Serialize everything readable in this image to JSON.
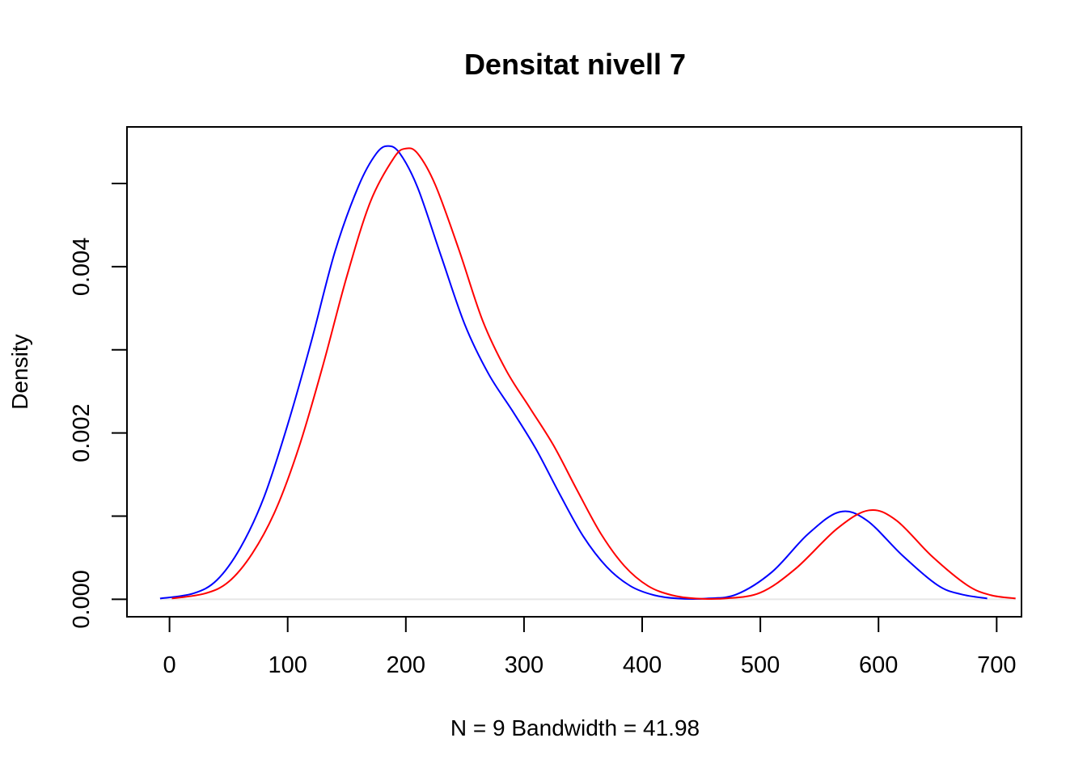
{
  "chart_data": {
    "type": "line",
    "title": "Densitat nivell 7",
    "xlabel": "N = 9   Bandwidth = 41.98",
    "ylabel": "Density",
    "xlim": [
      -36,
      721
    ],
    "ylim": [
      -0.00021,
      0.00568
    ],
    "x_ticks": [
      0,
      100,
      200,
      300,
      400,
      500,
      600,
      700
    ],
    "x_tick_labels": [
      "0",
      "100",
      "200",
      "300",
      "400",
      "500",
      "600",
      "700"
    ],
    "y_ticks": [
      0,
      0.001,
      0.002,
      0.003,
      0.004,
      0.005
    ],
    "y_tick_labels": [
      "0.000",
      "",
      "0.002",
      "",
      "0.004",
      ""
    ],
    "zero_line": true,
    "series": [
      {
        "name": "blue",
        "color": "#0000ff",
        "points": [
          [
            -8,
            1e-05
          ],
          [
            20,
            7e-05
          ],
          [
            40,
            0.00023
          ],
          [
            60,
            0.00062
          ],
          [
            80,
            0.00123
          ],
          [
            100,
            0.0021
          ],
          [
            120,
            0.0031
          ],
          [
            140,
            0.00418
          ],
          [
            160,
            0.00497
          ],
          [
            175,
            0.00536
          ],
          [
            185,
            0.00545
          ],
          [
            195,
            0.00536
          ],
          [
            210,
            0.00495
          ],
          [
            230,
            0.00412
          ],
          [
            250,
            0.0033
          ],
          [
            270,
            0.00271
          ],
          [
            290,
            0.00227
          ],
          [
            310,
            0.00181
          ],
          [
            330,
            0.00127
          ],
          [
            350,
            0.00076
          ],
          [
            370,
            0.00039
          ],
          [
            390,
            0.00016
          ],
          [
            410,
            5e-05
          ],
          [
            430,
            1e-05
          ],
          [
            455,
            1e-05
          ],
          [
            480,
            6e-05
          ],
          [
            510,
            0.00033
          ],
          [
            540,
            0.00078
          ],
          [
            567,
            0.00105
          ],
          [
            590,
            0.00095
          ],
          [
            620,
            0.00053
          ],
          [
            650,
            0.00017
          ],
          [
            670,
            6e-05
          ],
          [
            692,
            1e-05
          ]
        ]
      },
      {
        "name": "red",
        "color": "#ff0000",
        "points": [
          [
            2,
            1e-05
          ],
          [
            30,
            7e-05
          ],
          [
            50,
            0.00021
          ],
          [
            70,
            0.00055
          ],
          [
            90,
            0.00108
          ],
          [
            110,
            0.00185
          ],
          [
            130,
            0.00282
          ],
          [
            150,
            0.00388
          ],
          [
            170,
            0.00478
          ],
          [
            190,
            0.00531
          ],
          [
            200,
            0.00542
          ],
          [
            210,
            0.00536
          ],
          [
            225,
            0.00498
          ],
          [
            245,
            0.0042
          ],
          [
            265,
            0.00335
          ],
          [
            285,
            0.00275
          ],
          [
            305,
            0.0023
          ],
          [
            325,
            0.00185
          ],
          [
            345,
            0.00131
          ],
          [
            365,
            0.00079
          ],
          [
            385,
            0.0004
          ],
          [
            405,
            0.00016
          ],
          [
            425,
            5e-05
          ],
          [
            445,
            1e-05
          ],
          [
            470,
            1e-05
          ],
          [
            500,
            8e-05
          ],
          [
            530,
            0.00037
          ],
          [
            565,
            0.00085
          ],
          [
            592,
            0.00107
          ],
          [
            615,
            0.00095
          ],
          [
            645,
            0.00052
          ],
          [
            675,
            0.00017
          ],
          [
            695,
            5e-05
          ],
          [
            716,
            1e-05
          ]
        ]
      }
    ]
  }
}
